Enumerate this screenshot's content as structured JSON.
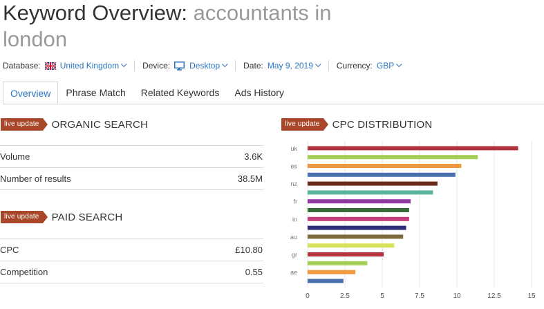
{
  "header": {
    "title_prefix": "Keyword Overview: ",
    "keyword": "accountants in london"
  },
  "filters": {
    "database_label": "Database:",
    "database_value": "United Kingdom",
    "device_label": "Device:",
    "device_value": "Desktop",
    "date_label": "Date:",
    "date_value": "May 9, 2019",
    "currency_label": "Currency:",
    "currency_value": "GBP"
  },
  "tabs": [
    {
      "label": "Overview",
      "active": true
    },
    {
      "label": "Phrase Match",
      "active": false
    },
    {
      "label": "Related Keywords",
      "active": false
    },
    {
      "label": "Ads History",
      "active": false
    }
  ],
  "organic": {
    "badge": "live update",
    "title": "ORGANIC SEARCH",
    "rows": [
      {
        "label": "Volume",
        "value": "3.6K"
      },
      {
        "label": "Number of results",
        "value": "38.5M"
      }
    ]
  },
  "paid": {
    "badge": "live update",
    "title": "PAID SEARCH",
    "rows": [
      {
        "label": "CPC",
        "value": "£10.80"
      },
      {
        "label": "Competition",
        "value": "0.55"
      }
    ]
  },
  "cpc": {
    "badge": "live update",
    "title": "CPC DISTRIBUTION"
  },
  "chart_data": {
    "type": "bar",
    "orientation": "horizontal",
    "y_tick_labels": [
      "uk",
      "es",
      "nz",
      "fr",
      "in",
      "au",
      "gr",
      "ae"
    ],
    "x_ticks": [
      "0",
      "2.5",
      "5",
      "7.5",
      "10",
      "12.5",
      "15"
    ],
    "xlim": [
      0,
      15
    ],
    "grid": true,
    "bars": [
      {
        "value": 14.1,
        "color": "#b2333d"
      },
      {
        "value": 11.4,
        "color": "#a6cf55"
      },
      {
        "value": 10.3,
        "color": "#ef9a3f"
      },
      {
        "value": 9.9,
        "color": "#4a6fae"
      },
      {
        "value": 8.7,
        "color": "#6a2b1b"
      },
      {
        "value": 8.4,
        "color": "#5ab59c"
      },
      {
        "value": 6.9,
        "color": "#8f3ca0"
      },
      {
        "value": 6.8,
        "color": "#3a6b3a"
      },
      {
        "value": 6.8,
        "color": "#c43d7b"
      },
      {
        "value": 6.6,
        "color": "#2d2f7a"
      },
      {
        "value": 6.4,
        "color": "#7d6a3f"
      },
      {
        "value": 5.8,
        "color": "#d8e25a"
      },
      {
        "value": 5.1,
        "color": "#b2333d"
      },
      {
        "value": 4.0,
        "color": "#a6cf55"
      },
      {
        "value": 3.2,
        "color": "#ef9a3f"
      },
      {
        "value": 2.4,
        "color": "#4a6fae"
      }
    ]
  }
}
